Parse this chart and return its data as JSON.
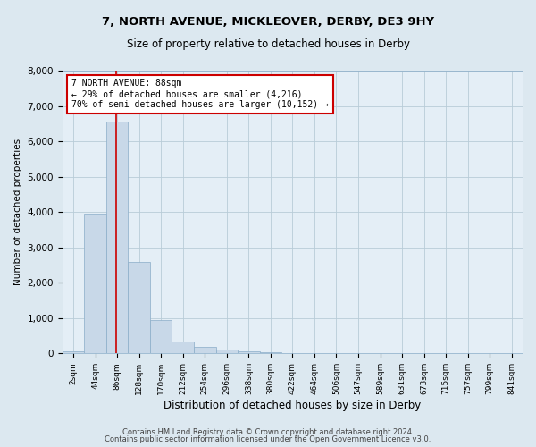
{
  "title1": "7, NORTH AVENUE, MICKLEOVER, DERBY, DE3 9HY",
  "title2": "Size of property relative to detached houses in Derby",
  "xlabel": "Distribution of detached houses by size in Derby",
  "ylabel": "Number of detached properties",
  "footnote1": "Contains HM Land Registry data © Crown copyright and database right 2024.",
  "footnote2": "Contains public sector information licensed under the Open Government Licence v3.0.",
  "bar_labels": [
    "2sqm",
    "44sqm",
    "86sqm",
    "128sqm",
    "170sqm",
    "212sqm",
    "254sqm",
    "296sqm",
    "338sqm",
    "380sqm",
    "422sqm",
    "464sqm",
    "506sqm",
    "547sqm",
    "589sqm",
    "631sqm",
    "673sqm",
    "715sqm",
    "757sqm",
    "799sqm",
    "841sqm"
  ],
  "bar_values": [
    50,
    3950,
    6550,
    2600,
    950,
    350,
    175,
    100,
    55,
    30,
    15,
    7,
    3,
    2,
    1,
    1,
    0,
    0,
    0,
    0,
    0
  ],
  "bar_color": "#c8d8e8",
  "bar_edge_color": "#8aacc8",
  "property_label": "7 NORTH AVENUE: 88sqm",
  "annotation_line1": "← 29% of detached houses are smaller (4,216)",
  "annotation_line2": "70% of semi-detached houses are larger (10,152) →",
  "vline_color": "#cc0000",
  "annotation_box_color": "#ffffff",
  "annotation_box_edge": "#cc0000",
  "ylim": [
    0,
    8000
  ],
  "yticks": [
    0,
    1000,
    2000,
    3000,
    4000,
    5000,
    6000,
    7000,
    8000
  ],
  "grid_color": "#b8ccd8",
  "bg_color": "#dce8f0",
  "plot_bg_color": "#e4eef6"
}
